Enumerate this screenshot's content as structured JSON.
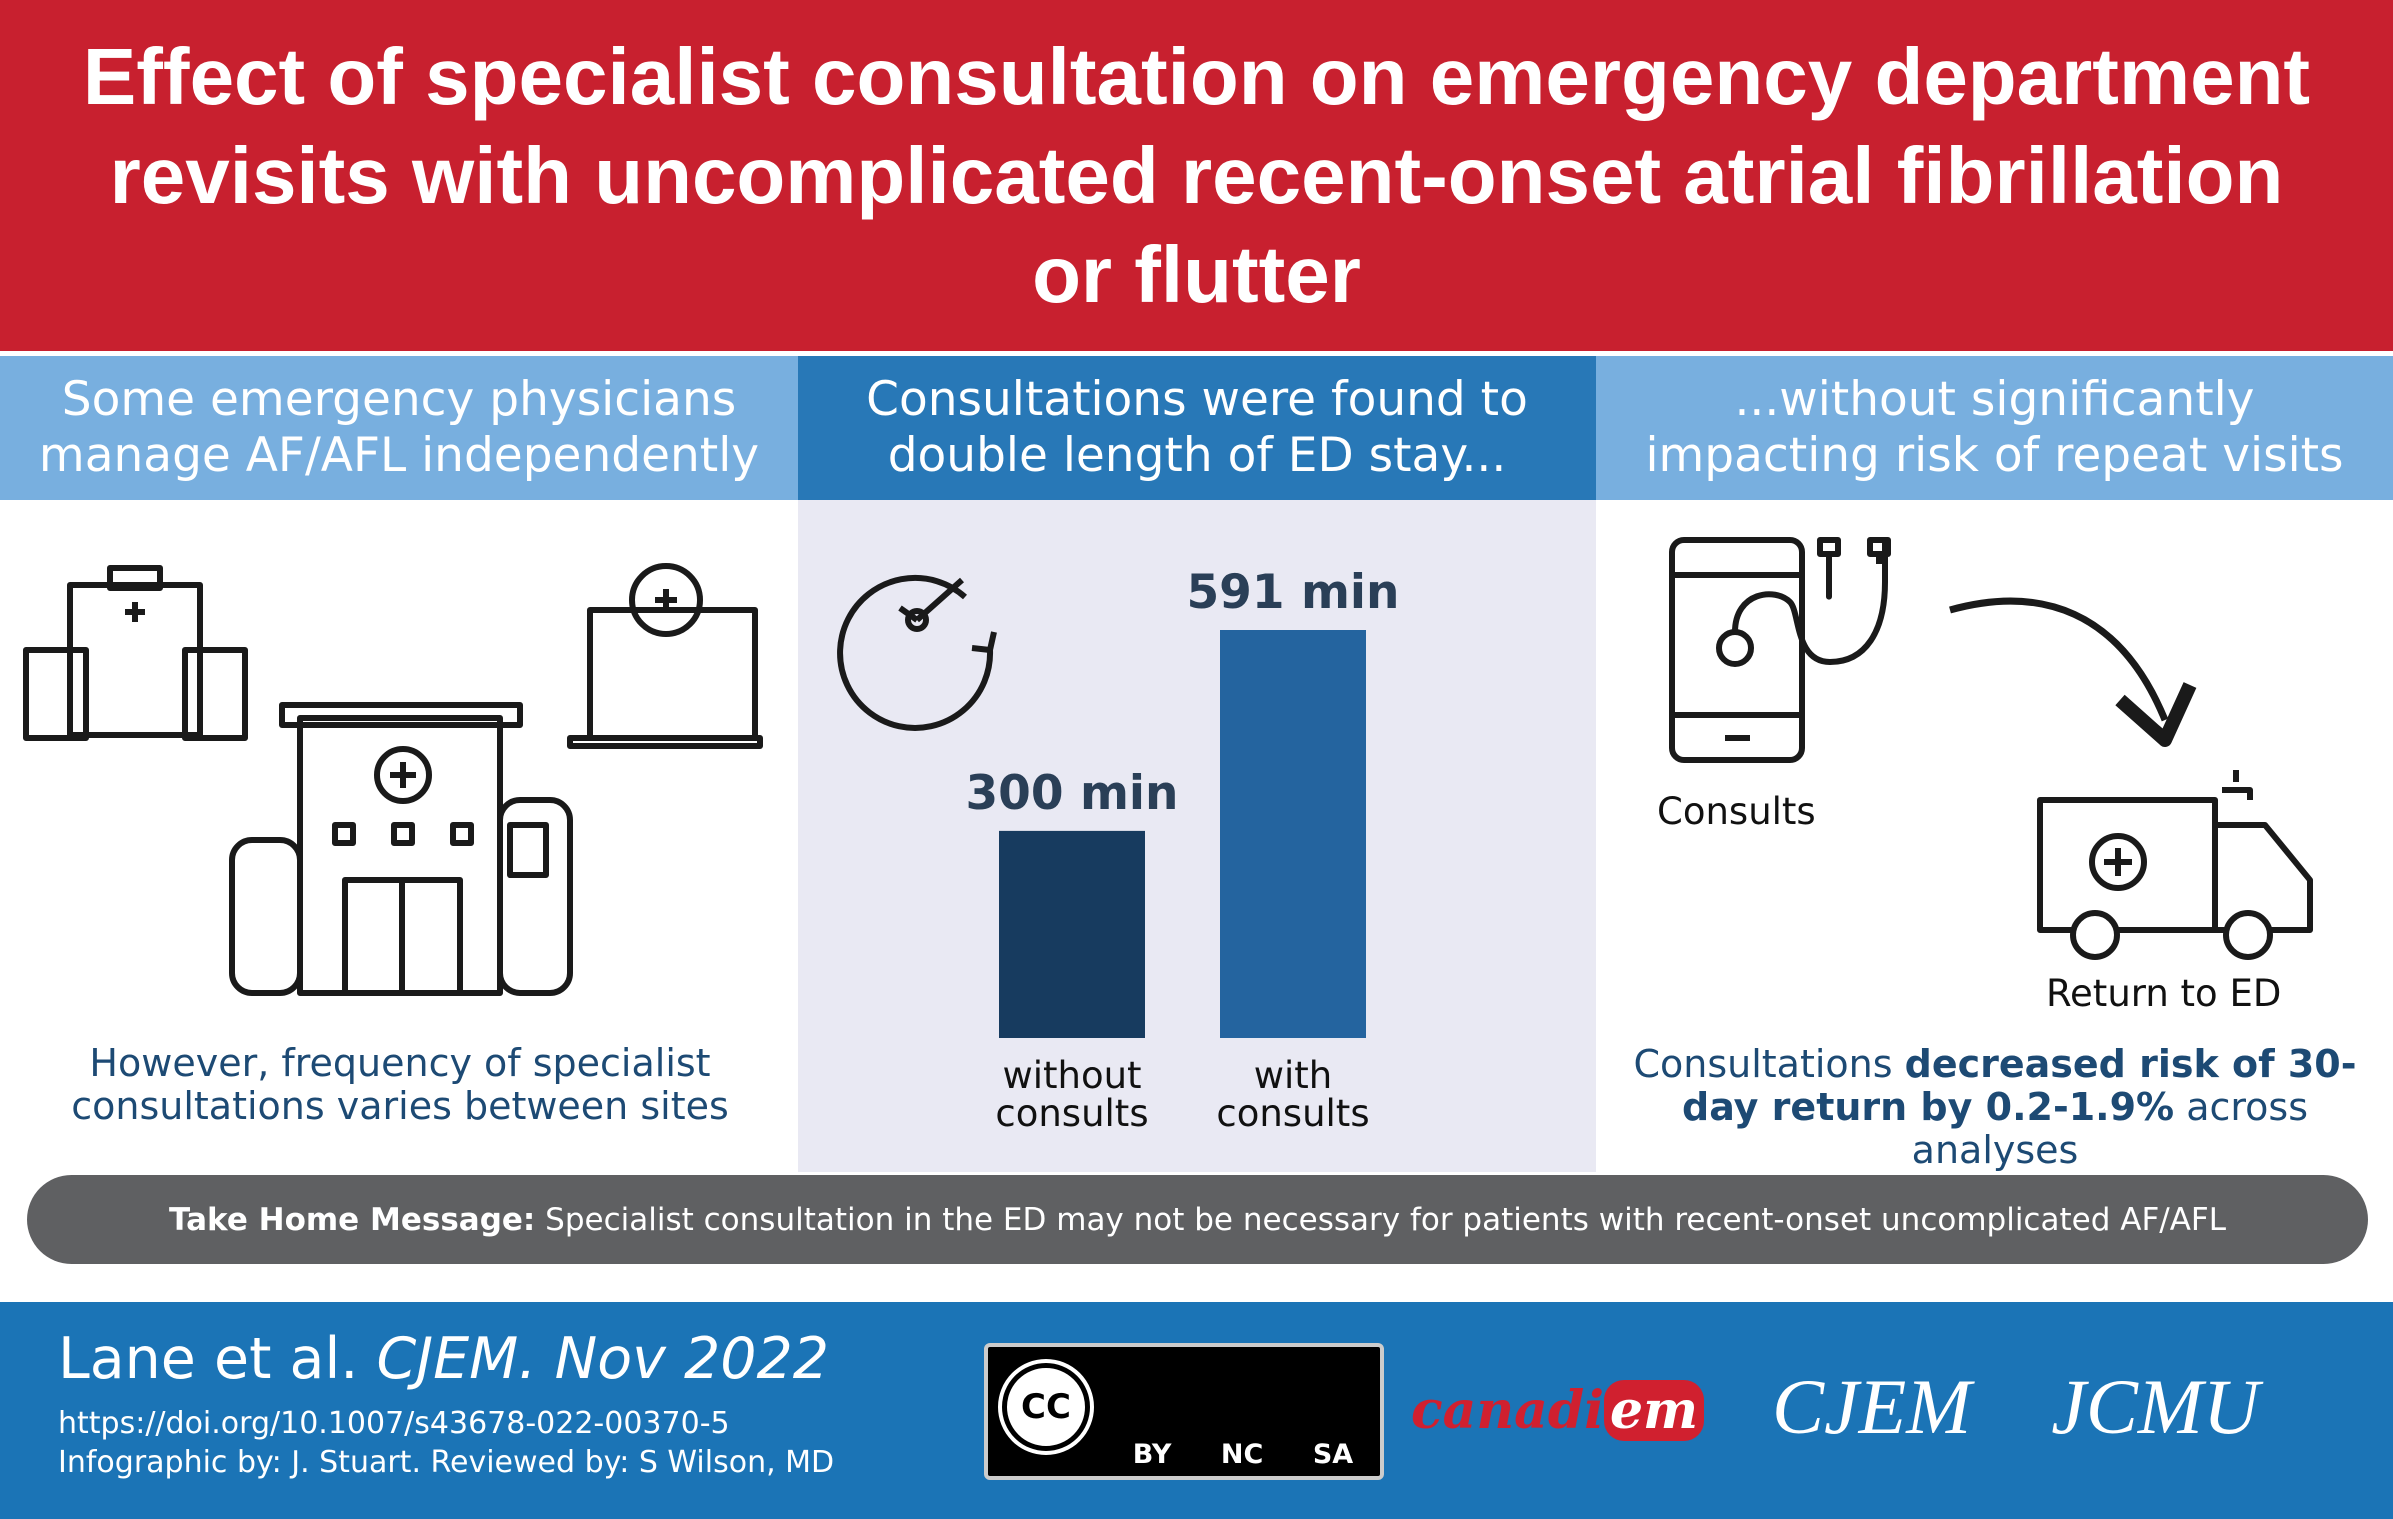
{
  "header": {
    "title": "Effect of specialist consultation on emergency department revisits with uncomplicated recent-onset atrial fibrillation or flutter"
  },
  "columns": [
    {
      "heading": "Some emergency physicians manage AF/AFL independently",
      "footnote": "However, frequency of specialist consultations varies between sites"
    },
    {
      "heading": "Consultations were found to double length of ED stay..."
    },
    {
      "heading": "...without significantly impacting risk of repeat visits",
      "labels": [
        "Consults",
        "Return to ED"
      ],
      "footnote": [
        "Consultations ",
        "decreased risk of 30-day return by 0.2-1.9%",
        " across analyses"
      ]
    }
  ],
  "chart_data": {
    "type": "bar",
    "categories": [
      "without consults",
      "with consults"
    ],
    "values": [
      300,
      591
    ],
    "value_labels": [
      "300 min",
      "591 min"
    ],
    "colors": [
      "#173b5f",
      "#24649f"
    ]
  },
  "take_home": {
    "label": "Take Home Message:",
    "text": " Specialist consultation in the ED may not be necessary for patients with recent-onset uncomplicated AF/AFL"
  },
  "footer": {
    "authors": "Lane et al. ",
    "journal": "CJEM. Nov 2022",
    "doi": "https://doi.org/10.1007/s43678-022-00370-5",
    "credits": "Infographic by: J. Stuart. Reviewed by: S Wilson, MD",
    "license_logo": "cc",
    "license": [
      "BY",
      "NC",
      "SA"
    ],
    "canadiem": [
      "canadi",
      "em"
    ],
    "journals": [
      "CJEM",
      "JCMU"
    ]
  }
}
